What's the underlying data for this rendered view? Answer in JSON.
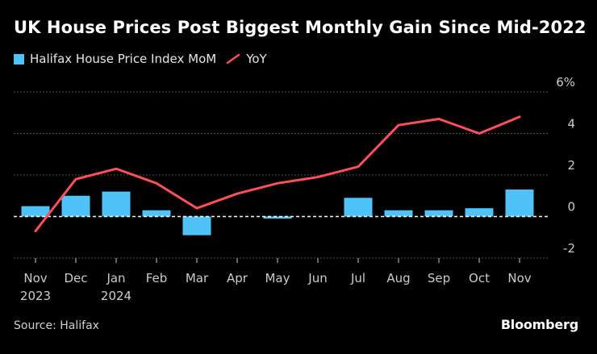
{
  "title": "UK House Prices Post Biggest Monthly Gain Since Mid-2022",
  "source": "Source: Halifax",
  "brand": "Bloomberg",
  "colors": {
    "bar": "#4fc3f7",
    "line": "#ff4f5b",
    "grid": "#666666",
    "zero": "#ffffff",
    "text": "#cccccc"
  },
  "legend": {
    "bar_label": "Halifax House Price Index MoM",
    "line_label": "YoY"
  },
  "chart_data": {
    "type": "bar",
    "title": "UK House Prices Post Biggest Monthly Gain Since Mid-2022",
    "categories": [
      "Nov",
      "Dec",
      "Jan",
      "Feb",
      "Mar",
      "Apr",
      "May",
      "Jun",
      "Jul",
      "Aug",
      "Sep",
      "Oct",
      "Nov"
    ],
    "category_sublabels": [
      "2023",
      "",
      "2024",
      "",
      "",
      "",
      "",
      "",
      "",
      "",
      "",
      "",
      ""
    ],
    "series": [
      {
        "name": "Halifax House Price Index MoM",
        "type": "bar",
        "values": [
          0.5,
          1.0,
          1.2,
          0.3,
          -0.9,
          0.0,
          -0.1,
          0.0,
          0.9,
          0.3,
          0.3,
          0.4,
          1.3
        ]
      },
      {
        "name": "YoY",
        "type": "line",
        "values": [
          -0.7,
          1.8,
          2.3,
          1.6,
          0.4,
          1.1,
          1.6,
          1.9,
          2.4,
          4.4,
          4.7,
          4.0,
          4.8
        ]
      }
    ],
    "yticks": [
      6,
      4,
      2,
      0,
      -2
    ],
    "ytick_labels": [
      "6%",
      "4",
      "2",
      "0",
      "-2"
    ],
    "ylim": [
      -2,
      6
    ],
    "xlabel": "",
    "ylabel": "",
    "grid": true,
    "legend_position": "top-left"
  }
}
